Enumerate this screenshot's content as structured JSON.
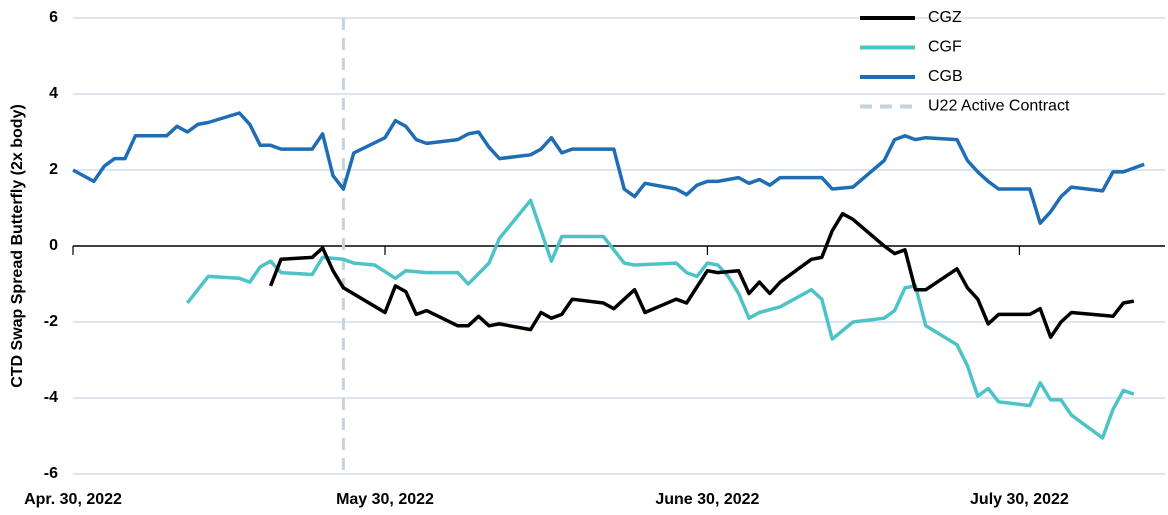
{
  "chart_data": {
    "type": "line",
    "y_label": "CTD Swap Spread Butterfly (2x body)",
    "xlim": [
      "2022-04-30",
      "2022-08-13"
    ],
    "xticks": [
      {
        "value": "2022-04-30",
        "label": "Apr. 30, 2022"
      },
      {
        "value": "2022-05-30",
        "label": "May 30, 2022"
      },
      {
        "value": "2022-06-30",
        "label": "June 30, 2022"
      },
      {
        "value": "2022-07-30",
        "label": "July 30, 2022"
      }
    ],
    "ylim": [
      -6,
      6
    ],
    "yticks": [
      -6,
      -4,
      -2,
      0,
      2,
      4,
      6
    ],
    "grid": true,
    "legend": "top-right",
    "series": [
      {
        "name": "CGZ",
        "color": "#000000",
        "x": [
          "2022-05-19",
          "2022-05-20",
          "2022-05-23",
          "2022-05-24",
          "2022-05-25",
          "2022-05-26",
          "2022-05-30",
          "2022-05-31",
          "2022-06-01",
          "2022-06-02",
          "2022-06-03",
          "2022-06-06",
          "2022-06-07",
          "2022-06-08",
          "2022-06-09",
          "2022-06-10",
          "2022-06-13",
          "2022-06-14",
          "2022-06-15",
          "2022-06-16",
          "2022-06-17",
          "2022-06-20",
          "2022-06-21",
          "2022-06-23",
          "2022-06-24",
          "2022-06-27",
          "2022-06-28",
          "2022-06-30",
          "2022-07-01",
          "2022-07-03",
          "2022-07-04",
          "2022-07-05",
          "2022-07-06",
          "2022-07-07",
          "2022-07-10",
          "2022-07-11",
          "2022-07-12",
          "2022-07-13",
          "2022-07-14",
          "2022-07-17",
          "2022-07-18",
          "2022-07-19",
          "2022-07-20",
          "2022-07-21",
          "2022-07-24",
          "2022-07-25",
          "2022-07-26",
          "2022-07-27",
          "2022-07-28",
          "2022-07-31",
          "2022-08-01",
          "2022-08-02",
          "2022-08-03",
          "2022-08-04",
          "2022-08-08",
          "2022-08-09",
          "2022-08-10"
        ],
        "values": [
          -1.05,
          -0.35,
          -0.3,
          -0.05,
          -0.65,
          -1.1,
          -1.75,
          -1.05,
          -1.2,
          -1.8,
          -1.7,
          -2.1,
          -2.1,
          -1.85,
          -2.1,
          -2.05,
          -2.2,
          -1.75,
          -1.9,
          -1.8,
          -1.4,
          -1.5,
          -1.65,
          -1.15,
          -1.75,
          -1.4,
          -1.5,
          -0.65,
          -0.7,
          -0.65,
          -1.25,
          -0.95,
          -1.25,
          -0.95,
          -0.35,
          -0.3,
          0.4,
          0.85,
          0.7,
          0,
          -0.2,
          -0.1,
          -1.15,
          -1.15,
          -0.6,
          -1.1,
          -1.4,
          -2.05,
          -1.8,
          -1.8,
          -1.65,
          -2.4,
          -2.0,
          -1.75,
          -1.85,
          -1.5,
          -1.45
        ]
      },
      {
        "name": "CGF",
        "color": "#4dc3c8",
        "x": [
          "2022-05-11",
          "2022-05-13",
          "2022-05-16",
          "2022-05-17",
          "2022-05-18",
          "2022-05-19",
          "2022-05-20",
          "2022-05-23",
          "2022-05-24",
          "2022-05-26",
          "2022-05-27",
          "2022-05-29",
          "2022-05-31",
          "2022-06-01",
          "2022-06-03",
          "2022-06-06",
          "2022-06-07",
          "2022-06-09",
          "2022-06-10",
          "2022-06-13",
          "2022-06-15",
          "2022-06-16",
          "2022-06-20",
          "2022-06-21",
          "2022-06-22",
          "2022-06-23",
          "2022-06-27",
          "2022-06-28",
          "2022-06-29",
          "2022-06-30",
          "2022-07-01",
          "2022-07-02",
          "2022-07-03",
          "2022-07-04",
          "2022-07-05",
          "2022-07-07",
          "2022-07-10",
          "2022-07-11",
          "2022-07-12",
          "2022-07-14",
          "2022-07-17",
          "2022-07-18",
          "2022-07-19",
          "2022-07-20",
          "2022-07-21",
          "2022-07-24",
          "2022-07-25",
          "2022-07-26",
          "2022-07-27",
          "2022-07-28",
          "2022-07-31",
          "2022-08-01",
          "2022-08-02",
          "2022-08-03",
          "2022-08-04",
          "2022-08-07",
          "2022-08-08",
          "2022-08-09",
          "2022-08-10"
        ],
        "values": [
          -1.5,
          -0.8,
          -0.85,
          -0.95,
          -0.55,
          -0.4,
          -0.7,
          -0.75,
          -0.3,
          -0.35,
          -0.45,
          -0.5,
          -0.85,
          -0.65,
          -0.7,
          -0.7,
          -1.0,
          -0.45,
          0.2,
          1.2,
          -0.4,
          0.25,
          0.25,
          -0.1,
          -0.45,
          -0.5,
          -0.45,
          -0.7,
          -0.8,
          -0.45,
          -0.5,
          -0.8,
          -1.25,
          -1.9,
          -1.75,
          -1.6,
          -1.15,
          -1.4,
          -2.45,
          -2.0,
          -1.9,
          -1.7,
          -1.1,
          -1.05,
          -2.1,
          -2.6,
          -3.15,
          -3.95,
          -3.75,
          -4.1,
          -4.2,
          -3.6,
          -4.05,
          -4.05,
          -4.45,
          -5.05,
          -4.3,
          -3.8,
          -3.9
        ]
      },
      {
        "name": "CGB",
        "color": "#1f6db5",
        "x": [
          "2022-04-30",
          "2022-05-02",
          "2022-05-03",
          "2022-05-04",
          "2022-05-05",
          "2022-05-06",
          "2022-05-09",
          "2022-05-10",
          "2022-05-11",
          "2022-05-12",
          "2022-05-13",
          "2022-05-16",
          "2022-05-17",
          "2022-05-18",
          "2022-05-19",
          "2022-05-20",
          "2022-05-23",
          "2022-05-24",
          "2022-05-25",
          "2022-05-26",
          "2022-05-27",
          "2022-05-30",
          "2022-05-31",
          "2022-06-01",
          "2022-06-02",
          "2022-06-03",
          "2022-06-06",
          "2022-06-07",
          "2022-06-08",
          "2022-06-09",
          "2022-06-10",
          "2022-06-13",
          "2022-06-14",
          "2022-06-15",
          "2022-06-16",
          "2022-06-17",
          "2022-06-21",
          "2022-06-22",
          "2022-06-23",
          "2022-06-24",
          "2022-06-27",
          "2022-06-28",
          "2022-06-29",
          "2022-06-30",
          "2022-07-01",
          "2022-07-03",
          "2022-07-04",
          "2022-07-05",
          "2022-07-06",
          "2022-07-07",
          "2022-07-11",
          "2022-07-12",
          "2022-07-14",
          "2022-07-17",
          "2022-07-18",
          "2022-07-19",
          "2022-07-20",
          "2022-07-21",
          "2022-07-24",
          "2022-07-25",
          "2022-07-26",
          "2022-07-27",
          "2022-07-28",
          "2022-07-31",
          "2022-08-01",
          "2022-08-02",
          "2022-08-03",
          "2022-08-04",
          "2022-08-07",
          "2022-08-08",
          "2022-08-09",
          "2022-08-11"
        ],
        "values": [
          2.0,
          1.7,
          2.1,
          2.3,
          2.3,
          2.9,
          2.9,
          3.15,
          3.0,
          3.2,
          3.25,
          3.5,
          3.2,
          2.65,
          2.65,
          2.55,
          2.55,
          2.95,
          1.85,
          1.5,
          2.45,
          2.85,
          3.3,
          3.15,
          2.8,
          2.7,
          2.8,
          2.95,
          3.0,
          2.6,
          2.3,
          2.4,
          2.55,
          2.85,
          2.45,
          2.55,
          2.55,
          1.5,
          1.3,
          1.65,
          1.5,
          1.35,
          1.6,
          1.7,
          1.7,
          1.8,
          1.65,
          1.75,
          1.6,
          1.8,
          1.8,
          1.5,
          1.55,
          2.25,
          2.8,
          2.9,
          2.8,
          2.85,
          2.8,
          2.25,
          1.95,
          1.7,
          1.5,
          1.5,
          0.6,
          0.9,
          1.3,
          1.55,
          1.45,
          1.95,
          1.95,
          2.15
        ]
      }
    ],
    "vline": {
      "name": "U22 Active Contract",
      "x": "2022-05-26",
      "color": "#c5d3dc"
    }
  }
}
